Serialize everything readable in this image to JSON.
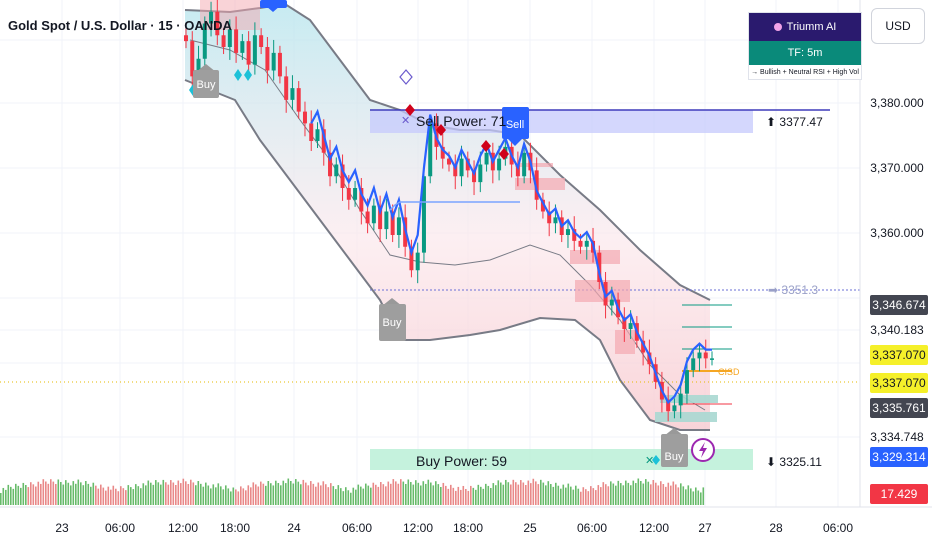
{
  "header": {
    "symbol_title": "Gold Spot / U.S. Dollar · 15 · OANDA",
    "currency_button": "USD"
  },
  "ai_panel": {
    "title": "Triumm AI",
    "timeframe": "TF: 5m",
    "note": "→ Bullish + Neutral RSI + High Vol"
  },
  "price_axis": {
    "ticks": [
      "3,380.000",
      "3,370.000",
      "3,360.000",
      "3,340.183",
      "3,334.748"
    ],
    "tags": [
      {
        "label": "3,346.674",
        "bg": "#434651",
        "fg": "#ffffff"
      },
      {
        "label": "3,337.070",
        "bg": "#f5f02a",
        "fg": "#131722"
      },
      {
        "label": "3,337.070",
        "bg": "#f5f02a",
        "fg": "#131722"
      },
      {
        "label": "3,335.761",
        "bg": "#434651",
        "fg": "#ffffff"
      },
      {
        "label": "3,329.314",
        "bg": "#2962ff",
        "fg": "#ffffff"
      },
      {
        "label": "17.429",
        "bg": "#f23645",
        "fg": "#ffffff"
      }
    ]
  },
  "time_axis": {
    "ticks": [
      "23",
      "06:00",
      "12:00",
      "18:00",
      "24",
      "06:00",
      "12:00",
      "18:00",
      "25",
      "06:00",
      "12:00",
      "27",
      "28",
      "06:00"
    ]
  },
  "annotations": {
    "sell_power": "Sell Power: 71",
    "buy_power": "Buy Power: 59",
    "resistance_label": "⬆ 3377.47",
    "support_label": "⬇ 3325.11",
    "mid_level": "➡ 3351.3",
    "cisd": "CISD",
    "buy_signal_1": "Buy",
    "buy_signal_2": "Buy",
    "buy_signal_3": "Buy",
    "sell_signal": "Sell"
  },
  "colors": {
    "bull": "#089981",
    "bear": "#f23645",
    "blue_line": "#2962ff",
    "sell_zone": "#c5cafc",
    "buy_zone": "#b7efd5",
    "vol_up": "#4caf50",
    "vol_down": "#e57373"
  },
  "chart_data": {
    "type": "candlestick",
    "price_range": [
      3318,
      3398
    ],
    "close_series": [
      3391,
      3385,
      3388,
      3394,
      3396,
      3392,
      3390,
      3393,
      3389,
      3391,
      3387,
      3392,
      3390,
      3386,
      3389,
      3385,
      3381,
      3383,
      3379,
      3377,
      3374,
      3376,
      3372,
      3368,
      3370,
      3366,
      3364,
      3366,
      3362,
      3360,
      3363,
      3359,
      3362,
      3358,
      3361,
      3356,
      3352,
      3355,
      3368,
      3377,
      3373,
      3371,
      3370,
      3368,
      3371,
      3369,
      3367,
      3370,
      3372,
      3369,
      3371,
      3373,
      3370,
      3368,
      3372,
      3369,
      3364,
      3362,
      3360,
      3361,
      3358,
      3359,
      3357,
      3356,
      3357,
      3355,
      3350,
      3346,
      3347,
      3344,
      3342,
      3343,
      3340,
      3338,
      3336,
      3333,
      3330,
      3328,
      3329,
      3331,
      3335,
      3337,
      3338,
      3337,
      3337
    ],
    "resistance": 3377.47,
    "support": 3325.11,
    "mid_level": 3351.3,
    "last_price": 3337.07
  }
}
